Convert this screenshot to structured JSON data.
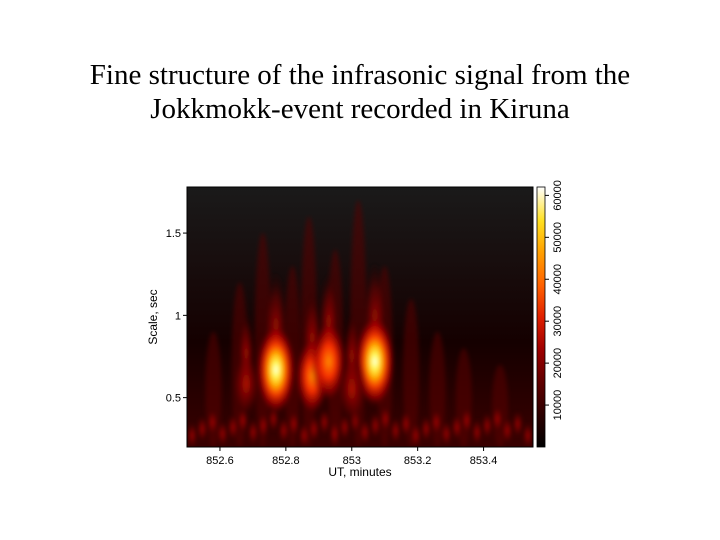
{
  "slide": {
    "title_line1": "Fine structure of the infrasonic signal from the",
    "title_line2": "Jokkmokk-event recorded in Kiruna"
  },
  "chart_data": {
    "type": "heatmap",
    "xlabel": "UT, minutes",
    "ylabel": "Scale, sec",
    "xlim": [
      852.5,
      853.55
    ],
    "ylim": [
      0.2,
      1.78
    ],
    "x_ticks": [
      852.6,
      852.8,
      853,
      853.2,
      853.4
    ],
    "x_tick_labels": [
      "852.6",
      "852.8",
      "853",
      "853.2",
      "853.4"
    ],
    "y_ticks": [
      0.5,
      1,
      1.5
    ],
    "y_tick_labels": [
      "0.5",
      "1",
      "1.5"
    ],
    "colorbar": {
      "range": [
        0,
        62000
      ],
      "ticks": [
        10000,
        20000,
        30000,
        40000,
        50000,
        60000
      ],
      "tick_labels": [
        "10000",
        "20000",
        "30000",
        "40000",
        "50000",
        "60000"
      ],
      "colormap": [
        "#000000",
        "#3a0000",
        "#7a0000",
        "#c00000",
        "#ff3000",
        "#ff8000",
        "#ffc000",
        "#ffff40",
        "#ffffff"
      ]
    },
    "hotspots": [
      {
        "x": 852.77,
        "y": 0.67,
        "peak": 60000
      },
      {
        "x": 852.88,
        "y": 0.63,
        "peak": 38000
      },
      {
        "x": 852.93,
        "y": 0.72,
        "peak": 45000
      },
      {
        "x": 853.07,
        "y": 0.72,
        "peak": 62000
      },
      {
        "x": 852.68,
        "y": 0.58,
        "peak": 18000
      },
      {
        "x": 853.0,
        "y": 0.55,
        "peak": 26000
      }
    ]
  }
}
